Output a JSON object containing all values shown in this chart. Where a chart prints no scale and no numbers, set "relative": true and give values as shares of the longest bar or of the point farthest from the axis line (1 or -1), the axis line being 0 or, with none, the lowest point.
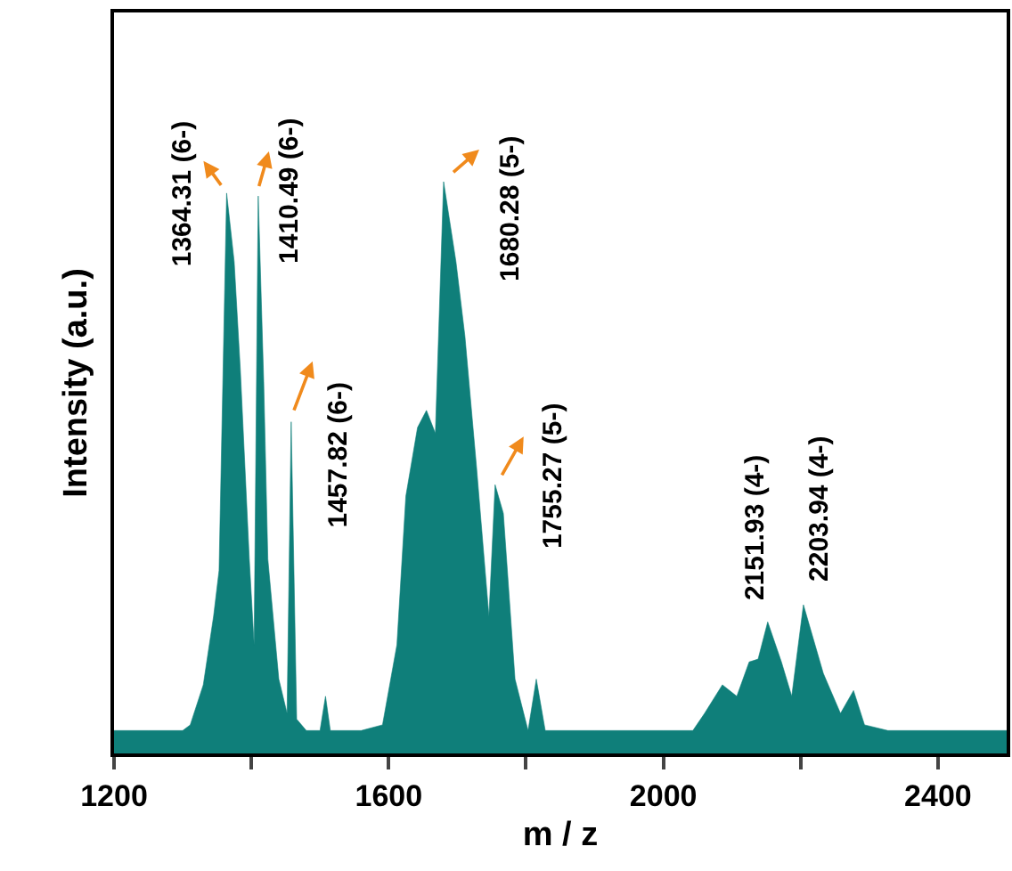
{
  "chart_data": {
    "type": "area",
    "xlabel": "m / z",
    "ylabel": "Intensity (a.u.)",
    "relative": true,
    "xlim": [
      1200,
      2500
    ],
    "xticks": [
      1200,
      {
        "value": 1400,
        "label": null
      },
      1600,
      {
        "value": 1800,
        "label": null
      },
      2000,
      {
        "value": 2200,
        "label": null
      },
      2400
    ],
    "x": [
      1200,
      1250,
      1300,
      1311,
      1330,
      1345,
      1353,
      1364,
      1375,
      1384,
      1397,
      1404,
      1410,
      1418,
      1424,
      1440,
      1452,
      1458,
      1466,
      1480,
      1500,
      1508,
      1515,
      1560,
      1591,
      1612,
      1625,
      1642,
      1655,
      1668,
      1680,
      1698,
      1711,
      1728,
      1746,
      1755,
      1767,
      1784,
      1803,
      1815,
      1828,
      1900,
      2000,
      2043,
      2060,
      2086,
      2107,
      2125,
      2138,
      2152,
      2172,
      2187,
      2204,
      2233,
      2258,
      2277,
      2293,
      2327,
      2400,
      2500
    ],
    "series": [
      {
        "color": "#0f7f7a",
        "values": [
          0.04,
          0.04,
          0.04,
          0.05,
          0.12,
          0.24,
          0.32,
          0.98,
          0.86,
          0.67,
          0.34,
          0.19,
          0.975,
          0.65,
          0.34,
          0.13,
          0.07,
          0.58,
          0.06,
          0.04,
          0.04,
          0.1,
          0.04,
          0.04,
          0.05,
          0.19,
          0.45,
          0.57,
          0.6,
          0.56,
          1.0,
          0.86,
          0.73,
          0.5,
          0.24,
          0.47,
          0.42,
          0.13,
          0.04,
          0.13,
          0.04,
          0.04,
          0.04,
          0.04,
          0.07,
          0.12,
          0.1,
          0.16,
          0.165,
          0.23,
          0.16,
          0.1,
          0.26,
          0.14,
          0.07,
          0.11,
          0.05,
          0.04,
          0.04,
          0.04
        ]
      }
    ],
    "annotations": [
      {
        "text": "1364.31 (6-)",
        "x": 1364,
        "y": 0.98
      },
      {
        "text": "1410.49 (6-)",
        "x": 1410,
        "y": 0.975
      },
      {
        "text": "1457.82 (6-)",
        "x": 1458,
        "y": 0.58
      },
      {
        "text": "1680.28 (5-)",
        "x": 1680,
        "y": 1.0
      },
      {
        "text": "1755.27 (5-)",
        "x": 1755,
        "y": 0.47
      },
      {
        "text": "2151.93 (4-)",
        "x": 2152,
        "y": 0.23
      },
      {
        "text": "2203.94 (4-)",
        "x": 2204,
        "y": 0.26
      }
    ]
  }
}
